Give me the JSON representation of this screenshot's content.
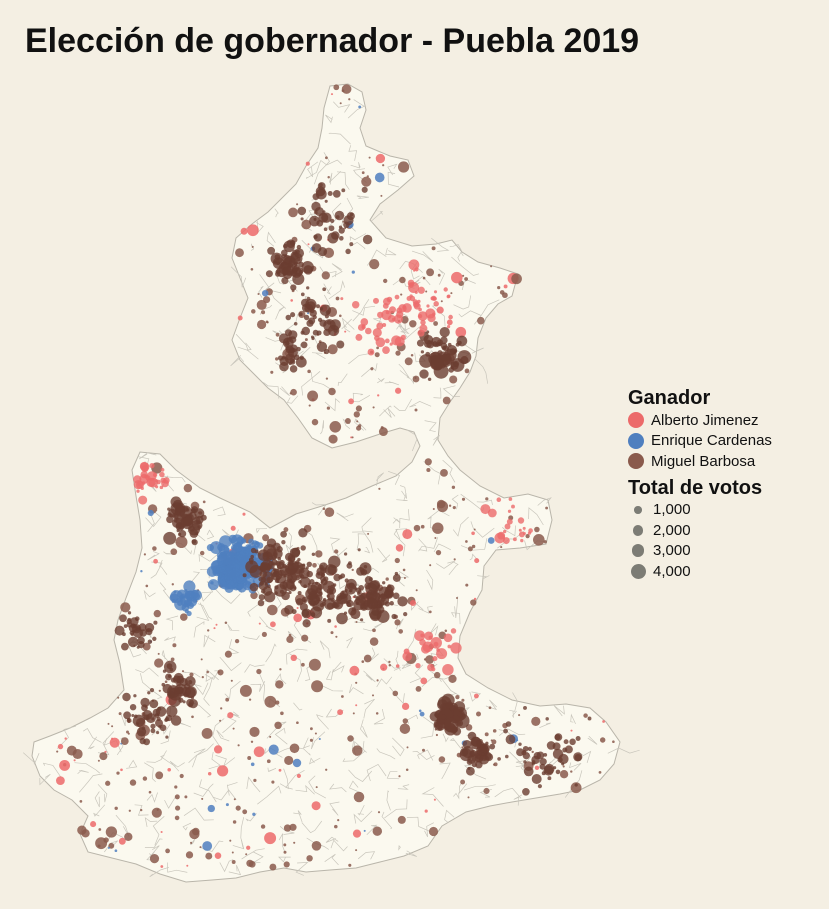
{
  "title": "Elección de gobernador - Puebla 2019",
  "legend": {
    "winner_title": "Ganador",
    "candidates": [
      {
        "name": "Alberto Jimenez",
        "color": "#ec6a6a"
      },
      {
        "name": "Enrique Cardenas",
        "color": "#4f7fbf"
      },
      {
        "name": "Miguel Barbosa",
        "color": "#8a5a4c"
      }
    ],
    "size_title": "Total de votos",
    "size_labels": [
      "1,000",
      "2,000",
      "3,000",
      "4,000"
    ],
    "size_values": [
      1000,
      2000,
      3000,
      4000
    ]
  },
  "colors": {
    "background": "#f4efe3",
    "land": "#fbf9ef",
    "borders": "#c9c6bc",
    "dot_dark": "#6b3d31"
  }
}
